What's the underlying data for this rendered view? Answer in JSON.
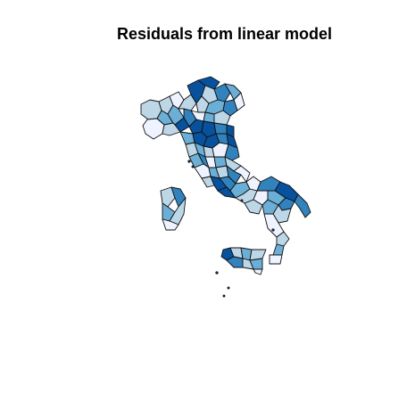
{
  "title": "Residuals from linear model",
  "palette": [
    "#eff3ff",
    "#bdd7e7",
    "#6baed6",
    "#3182bd",
    "#08519c"
  ]
}
